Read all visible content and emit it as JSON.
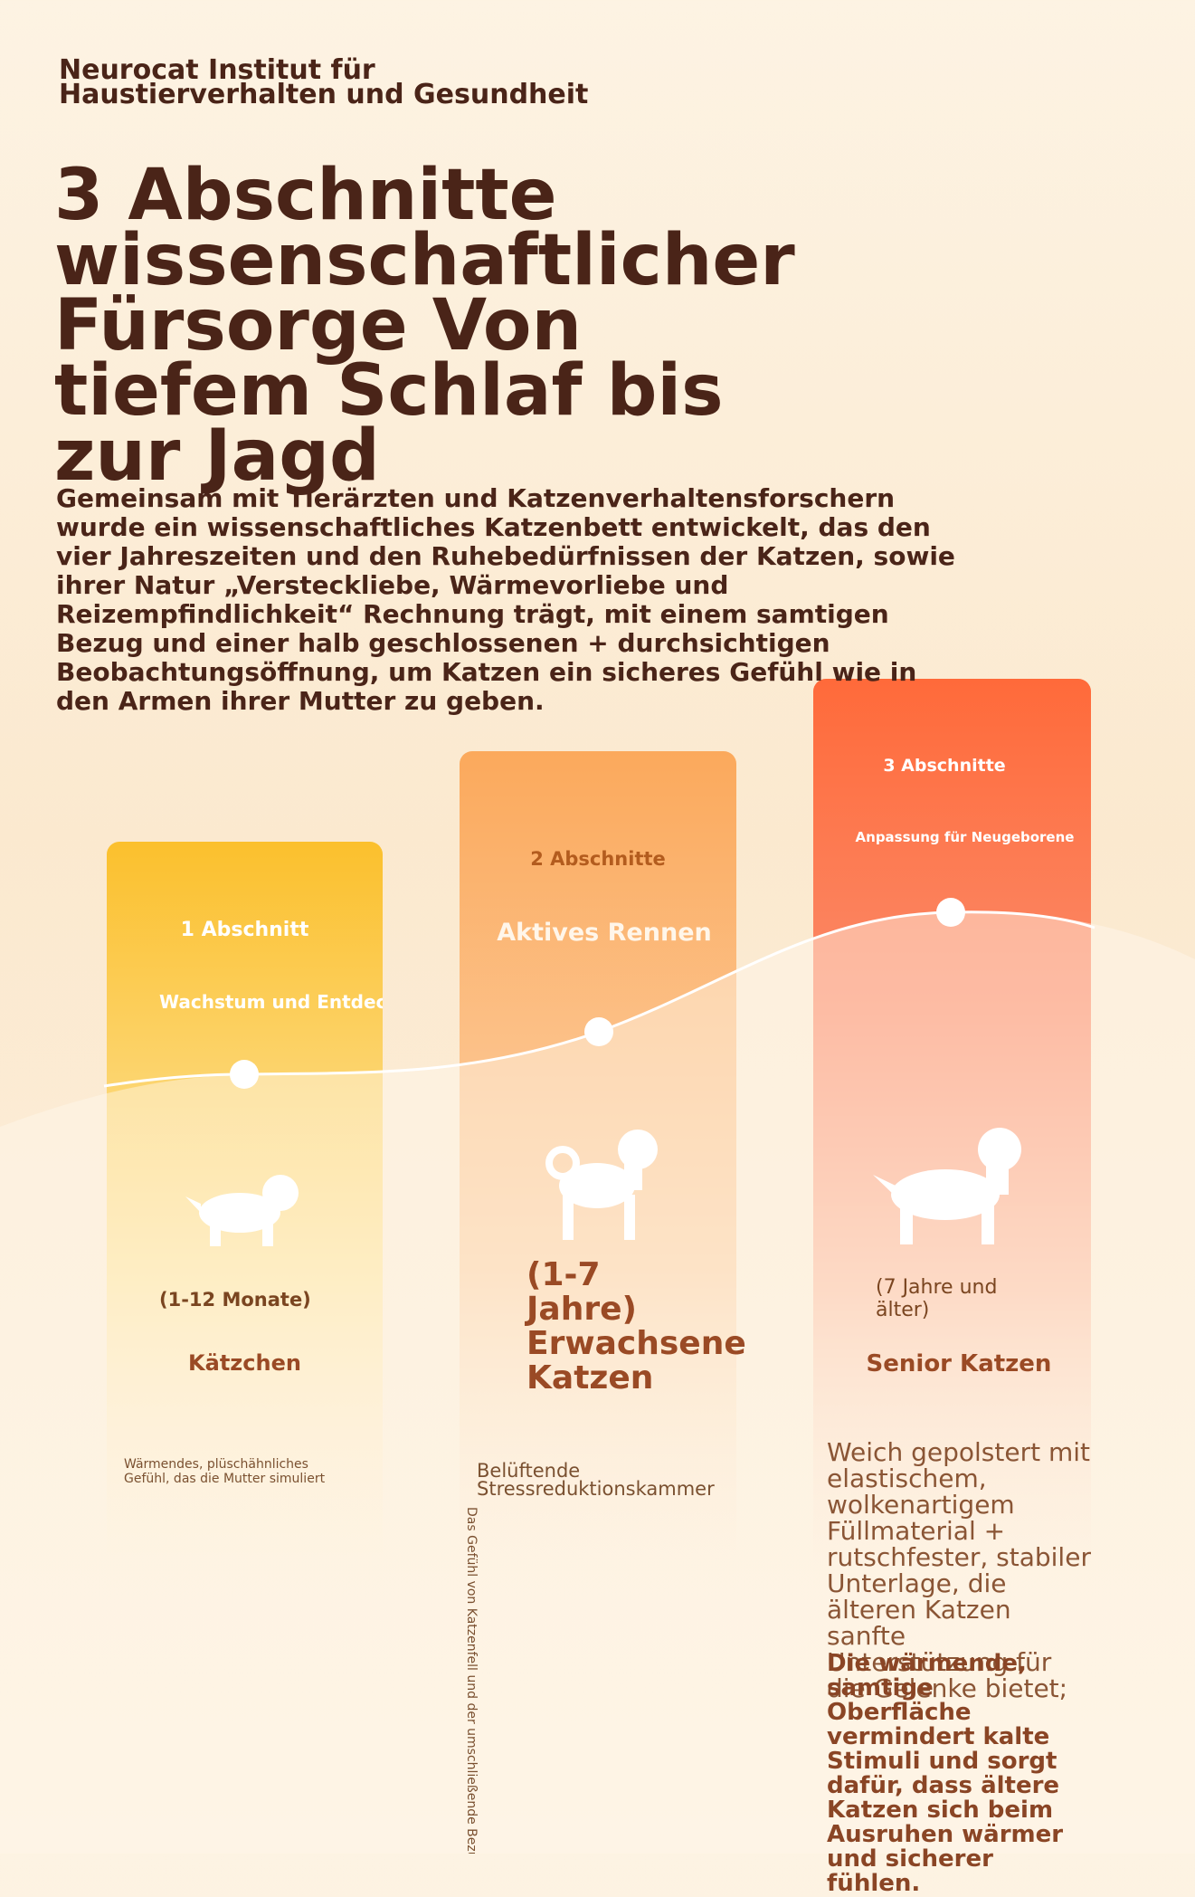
{
  "header": {
    "org": "Neurocat Institut für Haustierverhalten und Gesundheit",
    "title": "3 Abschnitte wissenschaftlicher Fürsorge Von tiefem Schlaf bis zur Jagd",
    "intro": "Gemeinsam mit Tierärzten und Katzenverhaltensforschern wurde ein wissenschaftliches Katzenbett entwickelt, das den vier Jahreszeiten und den Ruhebedürfnissen der Katzen, sowie ihrer Natur „Versteckliebe, Wärmevorliebe und Reizempfindlichkeit“ Rechnung trägt, mit einem samtigen Bezug und einer halb geschlossenen + durchsichtigen Beobachtungsöffnung, um Katzen ein sicheres Gefühl wie in den Armen ihrer Mutter zu geben."
  },
  "stages": [
    {
      "label": "1 Abschnitt",
      "subtitle": "Wachstum und Entdeck",
      "age": "(1-12 Monate)",
      "name": "Kätzchen",
      "feature": "Wärmendes, plüschähnliches Gefühl, das die Mutter simuliert"
    },
    {
      "label": "2 Abschnitte",
      "subtitle": "Aktives Rennen",
      "age": "(1-7 Jahre) Erwachsene Katzen",
      "feature": "Belüftende Stressreduktionskammer",
      "vertical": "Das Gefühl von Katzenfell und der umschließende Bezug n"
    },
    {
      "label": "3 Abschnitte",
      "subtitle": "Anpassung für Neugeborene",
      "age": "(7 Jahre und älter)",
      "name": "Senior Katzen",
      "feature": "Weich gepolstert mit elastischem, wolkenartigem Füllmaterial + rutschfester, stabiler Unterlage, die älteren Katzen sanfte Unterstützung für die Gelenke bietet;",
      "feature_bold": "Die wärmende, samtige Oberfläche vermindert kalte Stimuli und sorgt dafür, dass ältere Katzen sich beim Ausruhen wärmer und sicherer fühlen."
    }
  ]
}
